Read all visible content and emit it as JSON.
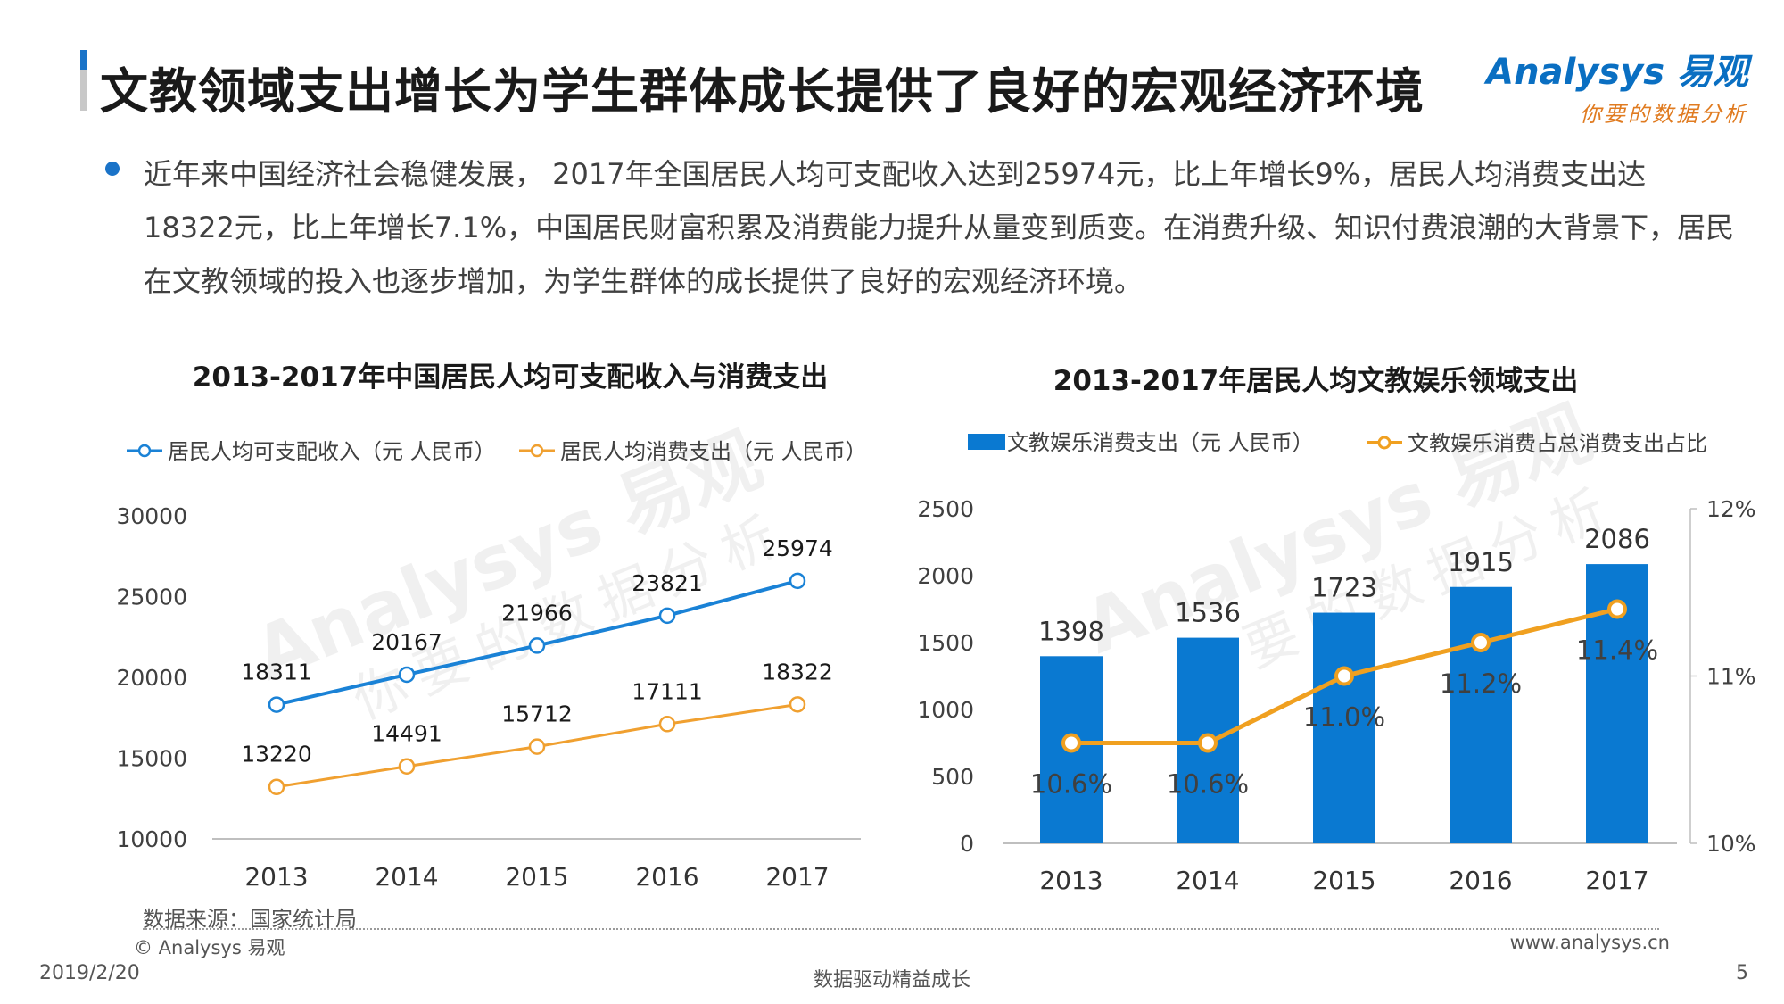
{
  "header": {
    "title": "文教领域支出增长为学生群体成长提供了良好的宏观经济环境",
    "logo_brand": "Analysys 易观",
    "logo_slogan": "你要的数据分析"
  },
  "intro": {
    "text": "近年来中国经济社会稳健发展， 2017年全国居民人均可支配收入达到25974元，比上年增长9%，居民人均消费支出达18322元，比上年增长7.1%，中国居民财富积累及消费能力提升从量变到质变。在消费升级、知识付费浪潮的大背景下，居民在文教领域的投入也逐步增加，为学生群体的成长提供了良好的宏观经济环境。"
  },
  "watermark": {
    "brand": "Analysys 易观",
    "slogan": "你要的数据分析"
  },
  "colors": {
    "blue": "#1a82d6",
    "orange": "#f0a030",
    "bar": "#0a79d1",
    "gold": "#f0a020",
    "accent": "#1a73c8"
  },
  "chart_data": [
    {
      "type": "line",
      "title": "2013-2017年中国居民人均可支配收入与消费支出",
      "categories": [
        "2013",
        "2014",
        "2015",
        "2016",
        "2017"
      ],
      "series": [
        {
          "name": "居民人均可支配收入（元 人民币）",
          "values": [
            18311,
            20167,
            21966,
            23821,
            25974
          ]
        },
        {
          "name": "居民人均消费支出（元 人民币）",
          "values": [
            13220,
            14491,
            15712,
            17111,
            18322
          ]
        }
      ],
      "yticks": [
        "10000",
        "15000",
        "20000",
        "25000",
        "30000"
      ],
      "ylim": [
        10000,
        30000
      ],
      "legend": "top"
    },
    {
      "type": "bar",
      "title": "2013-2017年居民人均文教娱乐领域支出",
      "categories": [
        "2013",
        "2014",
        "2015",
        "2016",
        "2017"
      ],
      "series": [
        {
          "name": "文教娱乐消费支出（元 人民币）",
          "type": "bar",
          "axis": "left",
          "values": [
            1398,
            1536,
            1723,
            1915,
            2086
          ]
        },
        {
          "name": "文教娱乐消费占总消费支出占比",
          "type": "line",
          "axis": "right",
          "values": [
            10.6,
            10.6,
            11.0,
            11.2,
            11.4
          ],
          "labels": [
            "10.6%",
            "10.6%",
            "11.0%",
            "11.2%",
            "11.4%"
          ]
        }
      ],
      "yticks_left": [
        "0",
        "500",
        "1000",
        "1500",
        "2000",
        "2500"
      ],
      "ylim_left": [
        0,
        2500
      ],
      "yticks_right": [
        "10%",
        "11%",
        "12%"
      ],
      "ylim_right": [
        10,
        12
      ],
      "legend": "top"
    }
  ],
  "footer": {
    "source": "数据来源：国家统计局",
    "copyright": "© Analysys 易观",
    "url": "www.analysys.cn",
    "date": "2019/2/20",
    "slogan": "数据驱动精益成长",
    "page": "5"
  }
}
